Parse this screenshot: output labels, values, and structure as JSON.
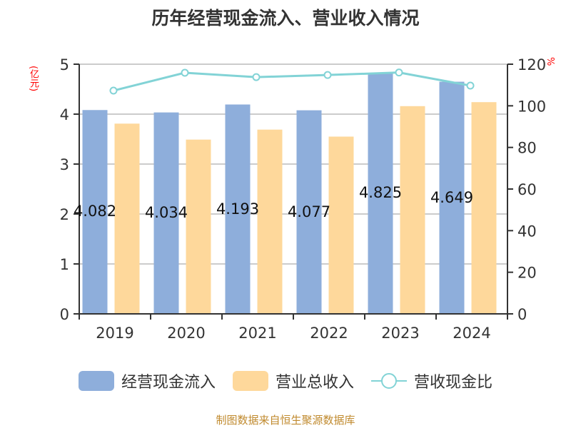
{
  "title": "历年经营现金流入、营业收入情况",
  "units": {
    "left": "(亿元)",
    "right": "%"
  },
  "legend": [
    {
      "label": "经营现金流入",
      "color": "#8eaedb",
      "type": "bar"
    },
    {
      "label": "营业总收入",
      "color": "#fed89b",
      "type": "bar"
    },
    {
      "label": "营收现金比",
      "color": "#82d3d6",
      "type": "line"
    }
  ],
  "source": "制图数据来自恒生聚源数据库",
  "chart_data": {
    "type": "bar",
    "title": "历年经营现金流入、营业收入情况",
    "categories": [
      "2019",
      "2020",
      "2021",
      "2022",
      "2023",
      "2024"
    ],
    "series": [
      {
        "name": "经营现金流入",
        "type": "bar",
        "axis": "left",
        "color": "#8eaedb",
        "values": [
          4.082,
          4.034,
          4.193,
          4.077,
          4.825,
          4.649
        ],
        "labels": [
          "4.082",
          "4.034",
          "4.193",
          "4.077",
          "4.825",
          "4.649"
        ]
      },
      {
        "name": "营业总收入",
        "type": "bar",
        "axis": "left",
        "color": "#fed89b",
        "values": [
          3.81,
          3.49,
          3.69,
          3.55,
          4.16,
          4.24
        ]
      },
      {
        "name": "营收现金比",
        "type": "line",
        "axis": "right",
        "color": "#82d3d6",
        "values": [
          107.3,
          115.9,
          113.8,
          114.8,
          116.0,
          109.7
        ]
      }
    ],
    "ylabel_left": "(亿元)",
    "ylabel_right": "%",
    "ylim_left": [
      0,
      5
    ],
    "yticks_left": [
      0,
      1,
      2,
      3,
      4,
      5
    ],
    "ylim_right": [
      0,
      120
    ],
    "yticks_right": [
      0,
      20,
      40,
      60,
      80,
      100,
      120
    ],
    "grid": true,
    "legend_position": "bottom"
  }
}
